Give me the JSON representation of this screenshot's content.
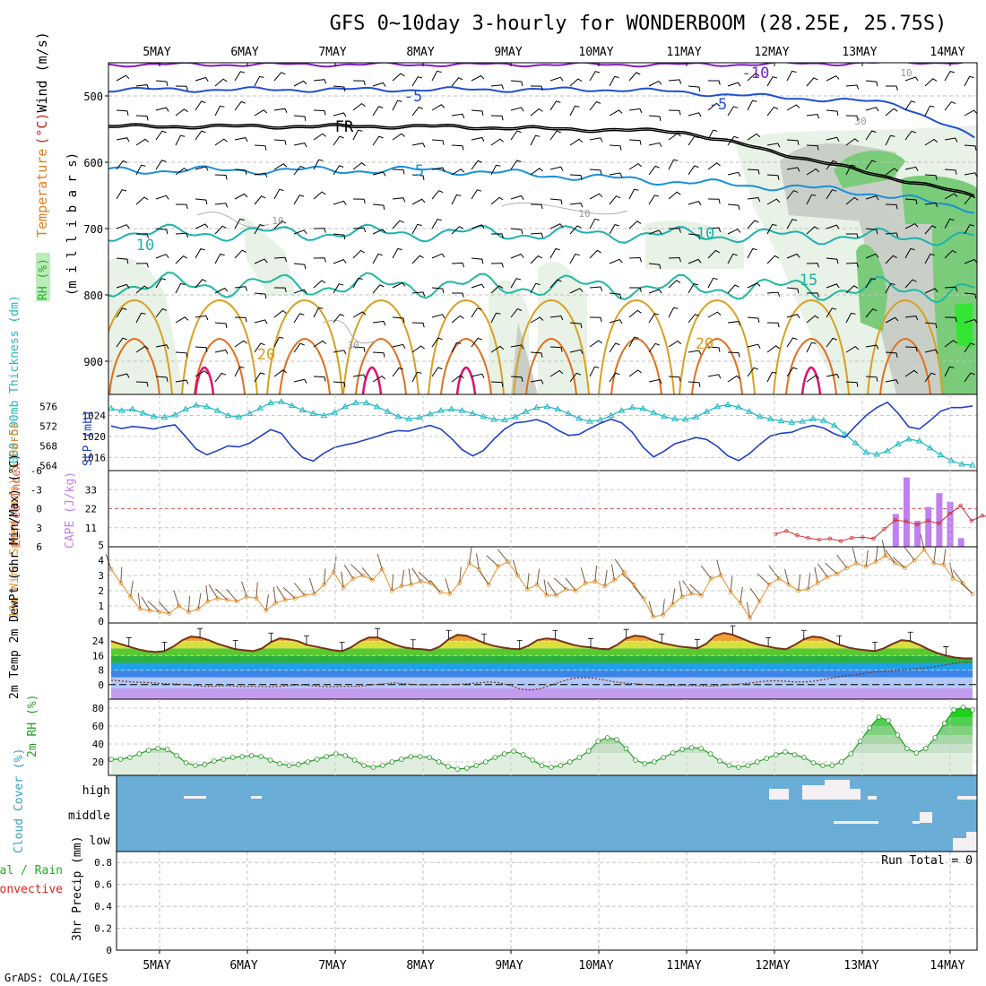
{
  "chart_data": {
    "title": "GFS 0~10day 3-hourly for WONDERBOOM (28.25E, 25.75S)",
    "footer": "GrADS: COLA/IGES",
    "type": "multi-panel meteogram",
    "days": [
      "5MAY",
      "6MAY",
      "7MAY",
      "8MAY",
      "9MAY",
      "10MAY",
      "11MAY",
      "12MAY",
      "13MAY",
      "14MAY"
    ],
    "panels": [
      {
        "id": "upper-air",
        "type": "contour",
        "ylabel_parts": [
          {
            "text": "Wind (m/s)",
            "color": "#000000"
          },
          {
            "text": "(°C)",
            "color": "#d82020"
          },
          {
            "text": "Temperature",
            "color": "#e08020"
          },
          {
            "text": "RH (%)",
            "color": "#20a020"
          }
        ],
        "ylabel_units": "(m i l l i b a r s)",
        "yticks": [
          500,
          600,
          700,
          800,
          900
        ],
        "ylim": [
          450,
          950
        ],
        "contour_labels": [
          {
            "value": "-10",
            "color": "#8020c0"
          },
          {
            "value": "10",
            "color": "#999999"
          },
          {
            "value": "-5",
            "color": "#2050d0"
          },
          {
            "value": "-5",
            "color": "#2050d0"
          },
          {
            "value": "30",
            "color": "#999999"
          },
          {
            "value": "FR",
            "color": "#000000"
          },
          {
            "value": "5",
            "color": "#1a90d8"
          },
          {
            "value": "10",
            "color": "#999999"
          },
          {
            "value": "10",
            "color": "#999999"
          },
          {
            "value": "10",
            "color": "#20b0b0"
          },
          {
            "value": "10",
            "color": "#20b0b0"
          },
          {
            "value": "15",
            "color": "#20b0a0"
          },
          {
            "value": "20",
            "color": "#d8a020"
          },
          {
            "value": "20",
            "color": "#d8a020"
          },
          {
            "value": "30",
            "color": "#999999"
          }
        ]
      },
      {
        "id": "thickness-slp",
        "type": "line",
        "ylabel_left": "1000-500mb Thickness (dm)",
        "ylabel_right": "SLP (mb)",
        "yticks_left": [
          564,
          568,
          572,
          576
        ],
        "yticks_right": [
          1016,
          1020,
          1024
        ],
        "series": [
          {
            "name": "Thickness",
            "color": "#20b8c0",
            "values": [
              575.6,
              575.2,
              575.5,
              574.7,
              574.0,
              573.8,
              574.3,
              575.5,
              576.3,
              576.0,
              575.2,
              574.2,
              573.9,
              574.6,
              575.7,
              576.8,
              577.0,
              576.2,
              575.3,
              574.6,
              574.2,
              574.8,
              576.0,
              576.8,
              576.8,
              576.0,
              575.0,
              574.0,
              573.5,
              573.8,
              574.5,
              575.2,
              575.5,
              575.2,
              574.6,
              574.0,
              573.4,
              573.3,
              573.9,
              575.0,
              575.8,
              576.0,
              575.5,
              574.6,
              573.6,
              573.0,
              573.3,
              574.2,
              575.2,
              575.8,
              575.6,
              574.8,
              574.0,
              573.5,
              573.4,
              573.9,
              575.0,
              576.0,
              576.4,
              575.9,
              575.0,
              574.0,
              573.5,
              573.1,
              572.8,
              573.0,
              573.5,
              573.2,
              572.2,
              570.4,
              568.6,
              566.7,
              566.3,
              567.0,
              568.4,
              569.4,
              569.0,
              567.6,
              566.2,
              565.0,
              564.3,
              564.1
            ]
          },
          {
            "name": "SLP",
            "color": "#2040c8",
            "values": [
              1022.0,
              1021.5,
              1021.9,
              1021.7,
              1021.4,
              1021.9,
              1022.2,
              1020.0,
              1017.6,
              1016.5,
              1017.3,
              1018.2,
              1018.0,
              1018.7,
              1020.0,
              1021.3,
              1020.6,
              1018.0,
              1016.0,
              1015.3,
              1016.8,
              1017.9,
              1018.4,
              1018.8,
              1019.4,
              1020.0,
              1020.7,
              1021.1,
              1021.0,
              1021.6,
              1022.1,
              1021.4,
              1019.6,
              1017.5,
              1016.3,
              1017.3,
              1019.5,
              1021.4,
              1022.6,
              1022.8,
              1023.2,
              1022.5,
              1021.2,
              1020.2,
              1020.4,
              1021.5,
              1022.5,
              1023.3,
              1022.6,
              1020.8,
              1018.0,
              1016.1,
              1017.2,
              1018.6,
              1019.2,
              1019.8,
              1019.4,
              1018.1,
              1016.3,
              1015.4,
              1016.7,
              1018.5,
              1020.1,
              1020.6,
              1020.8,
              1021.6,
              1022.1,
              1021.6,
              1020.5,
              1019.8,
              1022.0,
              1024.0,
              1025.5,
              1026.5,
              1024.4,
              1021.8,
              1021.4,
              1023.0,
              1024.8,
              1025.5,
              1025.5,
              1025.8
            ]
          }
        ]
      },
      {
        "id": "cape-li",
        "type": "bar+line",
        "ylabel_left": "Lifted Index",
        "ylabel_right": "CAPE (J/kg)",
        "yticks_left": [
          "-6",
          "-3",
          "0",
          "3",
          "6"
        ],
        "yticks_right": [
          "11",
          "22",
          "33"
        ],
        "cape_bars": [
          {
            "step": 72,
            "value": 19
          },
          {
            "step": 73,
            "value": 40
          },
          {
            "step": 74,
            "value": 15
          },
          {
            "step": 75,
            "value": 23
          },
          {
            "step": 76,
            "value": 31
          },
          {
            "step": 77,
            "value": 26
          },
          {
            "step": 78,
            "value": 5
          }
        ],
        "lifted_index": {
          "start_step": 61,
          "color": "#d03030",
          "values": [
            4.0,
            3.5,
            4.2,
            4.6,
            4.9,
            4.7,
            5.1,
            4.6,
            4.5,
            4.7,
            3.2,
            1.8,
            2.0,
            2.5,
            1.9,
            2.3,
            0.8,
            -0.5,
            1.9,
            1.1,
            1.4,
            1.5,
            0.2
          ]
        }
      },
      {
        "id": "wind10m",
        "type": "line",
        "ylabel": "10m Wind Speed (m/s) & Barbs",
        "yticks": [
          0,
          1,
          2,
          3,
          4,
          5
        ],
        "ylim": [
          0,
          5
        ],
        "series": [
          {
            "name": "Wind speed",
            "color": "#e8902a",
            "values": [
              3.4,
              2.5,
              1.6,
              0.8,
              0.7,
              0.6,
              0.5,
              1.0,
              0.6,
              0.8,
              1.3,
              1.5,
              1.4,
              1.3,
              1.6,
              1.5,
              0.7,
              1.2,
              1.4,
              1.5,
              1.7,
              1.8,
              2.4,
              3.2,
              2.2,
              2.8,
              3.0,
              2.7,
              3.4,
              2.0,
              2.3,
              2.4,
              2.6,
              2.5,
              1.9,
              1.8,
              2.5,
              3.8,
              3.4,
              2.4,
              3.6,
              3.9,
              3.0,
              2.1,
              2.4,
              1.7,
              1.7,
              2.1,
              2.0,
              2.5,
              2.6,
              2.3,
              2.7,
              3.2,
              2.4,
              1.5,
              0.3,
              0.4,
              1.1,
              1.6,
              1.8,
              1.7,
              2.8,
              3.0,
              1.9,
              1.2,
              0.2,
              1.3,
              2.4,
              2.8,
              2.4,
              2.0,
              2.1,
              2.5,
              2.9,
              3.1,
              3.5,
              3.8,
              3.6,
              3.9,
              4.3,
              3.8,
              3.5,
              4.0,
              4.7,
              3.8,
              3.7,
              2.8,
              2.5,
              1.8
            ]
          }
        ]
      },
      {
        "id": "temp2m",
        "type": "line",
        "ylabel": "2m Temp 2m DewPt (6hr Min/Max) (°C)",
        "yticks": [
          0,
          8,
          16,
          24
        ],
        "series": [
          {
            "name": "2m Temp",
            "color": "#7a3018",
            "values": [
              24.0,
              22.5,
              21.0,
              19.5,
              18.5,
              18.0,
              18.5,
              21.0,
              24.5,
              26.5,
              26.0,
              24.5,
              22.5,
              21.0,
              19.5,
              19.0,
              18.5,
              20.0,
              23.5,
              25.5,
              25.0,
              24.0,
              22.0,
              21.0,
              20.0,
              19.0,
              18.5,
              20.5,
              23.8,
              26.0,
              26.0,
              24.0,
              22.0,
              20.5,
              19.8,
              19.5,
              19.0,
              21.0,
              25.0,
              27.5,
              27.0,
              25.0,
              23.0,
              21.5,
              20.5,
              19.8,
              19.5,
              21.5,
              24.5,
              25.5,
              25.0,
              23.5,
              22.0,
              21.0,
              20.5,
              19.8,
              19.5,
              22.0,
              25.5,
              27.0,
              26.5,
              24.5,
              23.0,
              22.0,
              21.0,
              20.5,
              20.0,
              22.5,
              27.0,
              28.5,
              27.5,
              25.5,
              23.5,
              22.0,
              21.0,
              20.0,
              19.5,
              22.0,
              25.0,
              26.5,
              26.0,
              24.0,
              22.0,
              20.5,
              19.5,
              19.0,
              18.5,
              20.0,
              22.5,
              24.5,
              24.0,
              22.0,
              19.5,
              17.5,
              16.0,
              15.0,
              14.5,
              14.5
            ]
          },
          {
            "name": "2m DewPt",
            "color": "#7a3018",
            "values": [
              2.5,
              2.0,
              1.5,
              1.2,
              1.0,
              0.5,
              0.5,
              0.0,
              -0.5,
              -1.0,
              -0.8,
              -0.5,
              -1.0,
              -1.0,
              -1.0,
              -1.2,
              -1.0,
              -0.5,
              -0.2,
              -0.5,
              -1.0,
              -1.2,
              -1.0,
              -1.0,
              -0.8,
              0.0,
              0.5,
              1.0,
              0.5,
              0.0,
              -0.2,
              0.0,
              0.0,
              0.2,
              0.5,
              1.0,
              1.5,
              1.0,
              -0.5,
              -2.5,
              -3.0,
              -2.0,
              0.0,
              2.0,
              3.5,
              4.0,
              3.5,
              2.5,
              1.5,
              0.8,
              0.5,
              0.0,
              -0.3,
              -0.5,
              -0.5,
              -0.5,
              -0.6,
              -0.8,
              -0.5,
              0.0,
              0.5,
              1.0,
              1.8,
              2.2,
              2.0,
              1.5,
              1.5,
              2.0,
              3.0,
              4.0,
              5.0,
              5.5,
              6.5,
              7.2,
              7.5,
              8.0,
              8.5,
              9.0,
              9.5,
              10.5,
              11.5,
              12.2,
              12.5
            ]
          }
        ]
      },
      {
        "id": "rh2m",
        "type": "area",
        "ylabel": "2m RH (%)",
        "yticks": [
          20,
          40,
          60,
          80
        ],
        "series": [
          {
            "name": "2m RH",
            "color": "#20a020",
            "values": [
              23,
              23,
              25,
              29,
              33,
              35,
              34,
              27,
              19,
              16,
              17,
              21,
              23,
              25,
              26,
              27,
              26,
              22,
              18,
              16,
              17,
              20,
              23,
              26,
              29,
              27,
              22,
              16,
              14,
              16,
              20,
              23,
              26,
              26,
              25,
              20,
              15,
              12,
              13,
              16,
              20,
              25,
              29,
              32,
              28,
              22,
              16,
              14,
              16,
              20,
              25,
              32,
              43,
              47,
              45,
              35,
              22,
              18,
              20,
              25,
              30,
              34,
              36,
              35,
              29,
              21,
              16,
              14,
              16,
              20,
              24,
              28,
              31,
              28,
              25,
              19,
              16,
              16,
              20,
              29,
              43,
              58,
              70,
              66,
              50,
              35,
              30,
              35,
              47,
              63,
              78,
              81,
              78
            ]
          }
        ]
      },
      {
        "id": "cloud",
        "type": "heatmap",
        "ylabel": "Cloud Cover (%)",
        "levels": [
          "high",
          "middle",
          "low"
        ]
      },
      {
        "id": "precip",
        "type": "bar",
        "ylabel": "3hr Precip (mm)",
        "ylabel_left_a": "tal / Rain",
        "ylabel_left_b": "Convective",
        "yticks": [
          "0",
          "0.2",
          "0.4",
          "0.6",
          "0.8"
        ],
        "ylim": [
          0,
          0.9
        ],
        "run_total": "Run Total = 0"
      }
    ]
  }
}
